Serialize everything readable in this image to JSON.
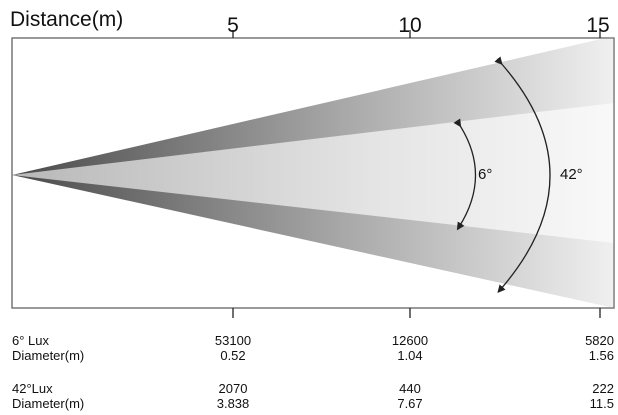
{
  "axis": {
    "title": "Distance(m)",
    "ticks": [
      {
        "label": "5",
        "value": 5
      },
      {
        "label": "10",
        "value": 10
      },
      {
        "label": "15",
        "value": 15
      }
    ],
    "max": 15
  },
  "beams": [
    {
      "angle_label": "6°",
      "angle_deg": 6
    },
    {
      "angle_label": "42°",
      "angle_deg": 42
    }
  ],
  "table": {
    "rows": [
      {
        "label": "6° Lux",
        "values": [
          "53100",
          "12600",
          "5820"
        ]
      },
      {
        "label": "Diameter(m)",
        "values": [
          "0.52",
          "1.04",
          "1.56"
        ]
      },
      {
        "label": "42°Lux",
        "values": [
          "2070",
          "440",
          "222"
        ]
      },
      {
        "label": "Diameter(m)",
        "values": [
          "3.838",
          "7.67",
          "11.5"
        ]
      }
    ]
  }
}
